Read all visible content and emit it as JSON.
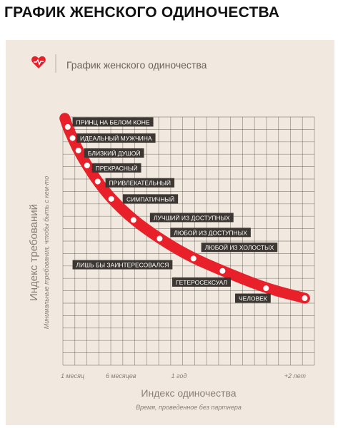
{
  "page_heading": "ГРАФИК ЖЕНСКОГО ОДИНОЧЕСТВА",
  "card": {
    "title": "График женского одиночества",
    "logo_icon": "heart-with-pulse-icon"
  },
  "colors": {
    "curve": "#e8202a",
    "label_bg": "#3d3733",
    "label_text": "#ffffff",
    "grid": "#4a4440",
    "axis_text": "#8a7e76",
    "card_bg": "#f1e9df"
  },
  "chart_data": {
    "type": "line",
    "title": "График женского одиночества",
    "xlabel": "Индекс одиночества",
    "xlabel_sub": "Время, проведенное без партнера",
    "ylabel": "Индекс требований",
    "ylabel_sub": "Минимальные требования, чтобы быть с кем-то",
    "x_ticks": [
      "1 месяц",
      "6 месяцев",
      "1 год",
      "+2 лет"
    ],
    "x_tick_values": [
      1,
      6,
      12,
      24
    ],
    "xlim": [
      0,
      26
    ],
    "ylim": [
      0,
      10
    ],
    "grid": true,
    "series": [
      {
        "x": [
          0.2,
          0.5,
          1.0,
          1.6,
          2.5,
          3.5,
          5.0,
          7.3,
          10.0,
          13.0,
          16.5,
          21.0,
          25.0
        ],
        "y": [
          9.95,
          9.6,
          9.15,
          8.65,
          8.05,
          7.45,
          6.7,
          5.85,
          5.1,
          4.4,
          3.8,
          3.1,
          2.7
        ],
        "markers_x": [
          0.5,
          1.0,
          1.6,
          2.5,
          3.6,
          5.0,
          7.3,
          10.0,
          13.5,
          16.5,
          21.0,
          25.0
        ],
        "markers_y": [
          9.6,
          9.15,
          8.65,
          8.05,
          7.4,
          6.7,
          5.85,
          5.1,
          4.3,
          3.8,
          3.1,
          2.7
        ]
      }
    ],
    "annotations": [
      {
        "text": "ПРИНЦ НА БЕЛОМ КОНЕ",
        "x": 1.0,
        "y": 9.8
      },
      {
        "text": "ИДЕАЛЬНЫЙ МУЖЧИНА",
        "x": 1.4,
        "y": 9.15
      },
      {
        "text": "БЛИЗКИЙ ДУШОЙ",
        "x": 2.2,
        "y": 8.55
      },
      {
        "text": "ПРЕКРАСНЫЙ",
        "x": 3.0,
        "y": 7.95
      },
      {
        "text": "ПРИВЛЕКАТЕЛЬНЫЙ",
        "x": 4.4,
        "y": 7.35
      },
      {
        "text": "СИМПАТИЧНЫЙ",
        "x": 6.2,
        "y": 6.7
      },
      {
        "text": "ЛУЧШИЙ ИЗ ДОСТУПНЫХ",
        "x": 9.0,
        "y": 5.95
      },
      {
        "text": "ЛЮБОЙ ИЗ ДОСТУПНЫХ",
        "x": 11.1,
        "y": 5.35
      },
      {
        "text": "ЛЮБОЙ ИЗ ХОЛОСТЫХ",
        "x": 14.3,
        "y": 4.75
      },
      {
        "text": "ЛИШЬ БЫ ЗАИНТЕРЕСОВАЛСЯ",
        "x": 1.0,
        "y": 4.05
      },
      {
        "text": "ГЕТЕРОСЕКСУАЛ",
        "x": 11.3,
        "y": 3.35
      },
      {
        "text": "ЧЕЛОВЕК",
        "x": 17.8,
        "y": 2.7
      }
    ]
  }
}
